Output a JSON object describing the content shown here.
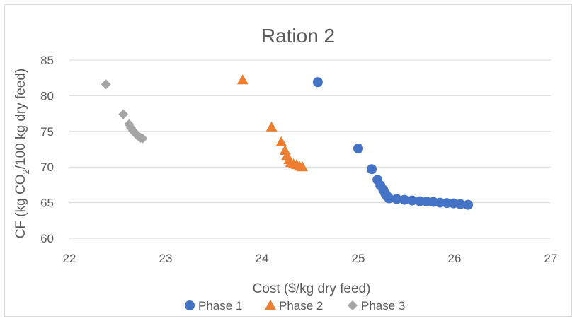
{
  "chart_data": {
    "type": "scatter",
    "title": "Ration 2",
    "xlabel": "Cost ($/kg dry feed)",
    "ylabel_parts": [
      "CF (kg CO",
      "2",
      "/100 kg dry feed)"
    ],
    "xlim": [
      22,
      27
    ],
    "ylim": [
      60,
      85
    ],
    "xticks": [
      "22",
      "23",
      "24",
      "25",
      "26",
      "27"
    ],
    "yticks": [
      "60",
      "65",
      "70",
      "75",
      "80",
      "85"
    ],
    "grid": true,
    "legend_position": "bottom",
    "series": [
      {
        "name": "Phase 1",
        "marker": "circle",
        "color": "#4472C4",
        "points": [
          [
            24.58,
            81.9
          ],
          [
            25.0,
            72.6
          ],
          [
            25.14,
            69.7
          ],
          [
            25.2,
            68.2
          ],
          [
            25.23,
            67.4
          ],
          [
            25.26,
            66.8
          ],
          [
            25.28,
            66.3
          ],
          [
            25.3,
            65.9
          ],
          [
            25.32,
            65.6
          ],
          [
            25.4,
            65.5
          ],
          [
            25.48,
            65.4
          ],
          [
            25.56,
            65.3
          ],
          [
            25.64,
            65.2
          ],
          [
            25.71,
            65.15
          ],
          [
            25.78,
            65.1
          ],
          [
            25.85,
            65.0
          ],
          [
            25.92,
            64.95
          ],
          [
            25.99,
            64.9
          ],
          [
            26.06,
            64.8
          ],
          [
            26.14,
            64.7
          ]
        ]
      },
      {
        "name": "Phase 2",
        "marker": "triangle",
        "color": "#ED7D31",
        "points": [
          [
            23.8,
            82.2
          ],
          [
            24.1,
            75.6
          ],
          [
            24.2,
            73.5
          ],
          [
            24.24,
            72.3
          ],
          [
            24.26,
            71.6
          ],
          [
            24.28,
            71.0
          ],
          [
            24.3,
            70.6
          ],
          [
            24.33,
            70.4
          ],
          [
            24.36,
            70.3
          ],
          [
            24.39,
            70.1
          ],
          [
            24.42,
            70.0
          ]
        ]
      },
      {
        "name": "Phase 3",
        "marker": "diamond",
        "color": "#A5A5A5",
        "points": [
          [
            22.38,
            81.6
          ],
          [
            22.56,
            77.4
          ],
          [
            22.62,
            76.0
          ],
          [
            22.64,
            75.5
          ],
          [
            22.66,
            75.1
          ],
          [
            22.68,
            74.8
          ],
          [
            22.7,
            74.5
          ],
          [
            22.72,
            74.3
          ],
          [
            22.74,
            74.1
          ],
          [
            22.76,
            74.0
          ]
        ]
      }
    ]
  }
}
